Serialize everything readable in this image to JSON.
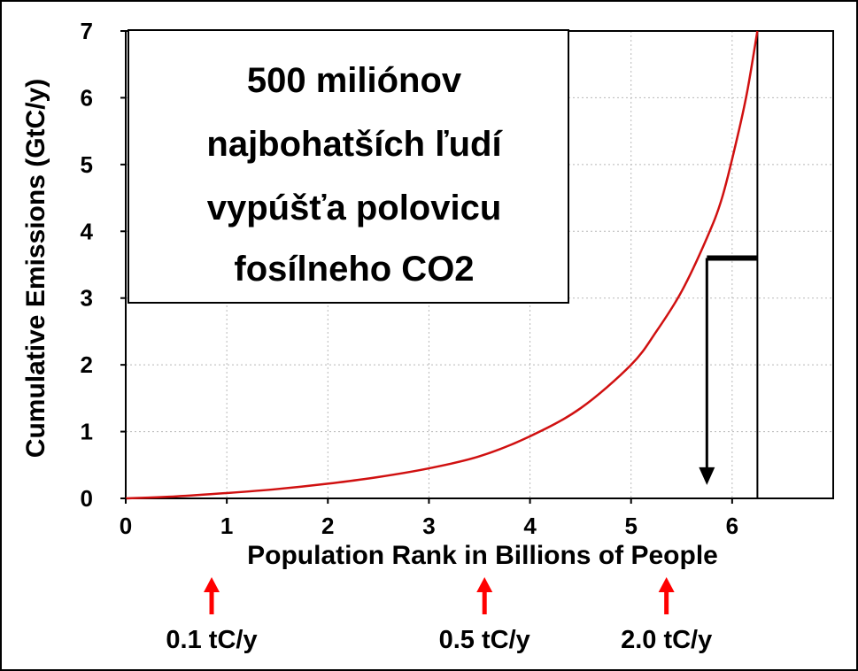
{
  "chart_data": {
    "type": "line",
    "title": "",
    "xlabel": "Population Rank in Billions of People",
    "ylabel": "Cumulative Emissions (GtC/y)",
    "xlim": [
      0,
      7
    ],
    "ylim": [
      0,
      7
    ],
    "x_ticks": [
      "0",
      "1",
      "2",
      "3",
      "4",
      "5",
      "6"
    ],
    "y_ticks": [
      "0",
      "1",
      "2",
      "3",
      "4",
      "5",
      "6",
      "7"
    ],
    "grid": true,
    "series": [
      {
        "color": "#d01010",
        "x": [
          0,
          0.5,
          1,
          1.5,
          2,
          2.5,
          3,
          3.5,
          4,
          4.5,
          5,
          5.25,
          5.5,
          5.75,
          5.9,
          6.05,
          6.15,
          6.25
        ],
        "y": [
          0,
          0.03,
          0.08,
          0.14,
          0.22,
          0.32,
          0.45,
          0.63,
          0.93,
          1.35,
          2.0,
          2.5,
          3.1,
          3.9,
          4.5,
          5.4,
          6.1,
          7.0
        ]
      }
    ],
    "vertical_line_x": 6.25,
    "annotation_box": {
      "lines": [
        "500 miliónov",
        "najbohatších ľudí",
        "vypúšťa polovicu",
        "fosílneho CO2"
      ]
    },
    "threshold_marker": {
      "x_start": 5.75,
      "x_end": 6.25,
      "y": 3.6,
      "arrow_to_y": 0.2
    },
    "rate_markers": [
      {
        "x": 0.85,
        "label": "0.1 tC/y",
        "arrow_color": "#ff0000"
      },
      {
        "x": 3.55,
        "label": "0.5 tC/y",
        "arrow_color": "#ff0000"
      },
      {
        "x": 5.35,
        "label": "2.0 tC/y",
        "arrow_color": "#ff0000"
      }
    ]
  }
}
